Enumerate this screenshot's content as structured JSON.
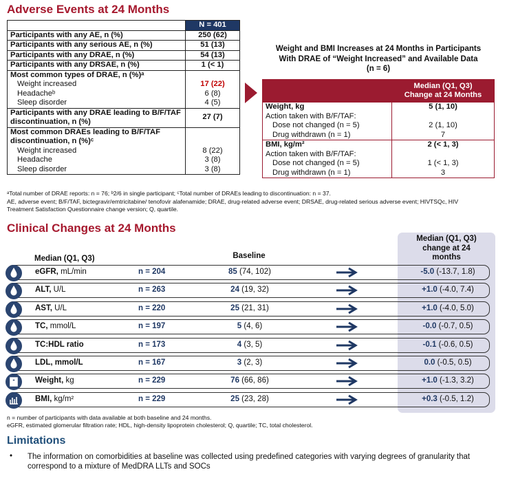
{
  "adverse_events": {
    "title": "Adverse Events at 24 Months",
    "header": "N = 401",
    "sections": [
      {
        "label": "Participants with any AE, n (%)",
        "value": "250 (62)"
      },
      {
        "label": "Participants with any serious AE, n (%)",
        "value": "51 (13)"
      },
      {
        "label": "Participants with any DRAE, n (%)",
        "value": "54 (13)"
      },
      {
        "label": "Participants with any DRSAE, n (%)",
        "value": "1 (< 1)"
      },
      {
        "label": "Most common types of DRAE, n (%)ᵃ",
        "items": [
          {
            "label": "Weight increased",
            "value": "17 (22)",
            "highlight": true
          },
          {
            "label": "Headacheᵇ",
            "value": "6 (8)"
          },
          {
            "label": "Sleep disorder",
            "value": "4 (5)"
          }
        ]
      },
      {
        "label": "Participants with any DRAE leading to B/F/TAF discontinuation, n (%)",
        "value": "27 (7)"
      },
      {
        "label": "Most common DRAEs leading to B/F/TAF discontinuation, n (%)ᶜ",
        "items": [
          {
            "label": "Weight increased",
            "value": "8 (22)"
          },
          {
            "label": "Headache",
            "value": "3 (8)"
          },
          {
            "label": "Sleep disorder",
            "value": "3 (8)"
          }
        ]
      }
    ],
    "footnotes": [
      "ᵃTotal number of DRAE reports: n = 76; ᵇ2/6 in single participant; ᶜTotal number of DRAEs leading to discontinuation: n = 37.",
      "AE, adverse event; B/F/TAF, bictegravir/emtricitabine/ tenofovir alafenamide; DRAE, drug-related adverse event; DRSAE, drug-related serious adverse event; HIVTSQc, HIV Treatment Satisfaction Questionnaire change version; Q, quartile."
    ]
  },
  "weight_bmi": {
    "title": "Weight and BMI Increases at 24 Months in Participants With DRAE of “Weight Increased” and Available Data (n = 6)",
    "header": "Median (Q1, Q3) Change at 24 Months",
    "sections": [
      {
        "label": "Weight, kg",
        "value": "5 (1, 10)",
        "action": "Action taken with B/F/TAF:",
        "items": [
          {
            "label": "Dose not changed (n = 5)",
            "value": "2 (1, 10)"
          },
          {
            "label": "Drug withdrawn (n = 1)",
            "value": "7"
          }
        ]
      },
      {
        "label": "BMI, kg/m²",
        "value": "2 (< 1, 3)",
        "action": "Action taken with B/F/TAF:",
        "items": [
          {
            "label": "Dose not changed (n = 5)",
            "value": "1 (< 1, 3)"
          },
          {
            "label": "Drug withdrawn (n = 1)",
            "value": "3"
          }
        ]
      }
    ]
  },
  "clinical": {
    "title": "Clinical Changes at 24 Months",
    "header_label": "Median (Q1, Q3)",
    "header_baseline": "Baseline",
    "header_change": "Median (Q1, Q3) change at 24 months",
    "rows": [
      {
        "name": "eGFR,",
        "unit": "mL/min",
        "n": "n = 204",
        "baseline_median": "85",
        "baseline_range": "(74, 102)",
        "change_median": "-5.0",
        "change_range": "(-13.7, 1.8)"
      },
      {
        "name": "ALT,",
        "unit": "U/L",
        "n": "n = 263",
        "baseline_median": "24",
        "baseline_range": "(19, 32)",
        "change_median": "+1.0",
        "change_range": "(-4.0, 7.4)"
      },
      {
        "name": "AST,",
        "unit": "U/L",
        "n": "n = 220",
        "baseline_median": "25",
        "baseline_range": "(21, 31)",
        "change_median": "+1.0",
        "change_range": "(-4.0, 5.0)"
      },
      {
        "name": "TC,",
        "unit": "mmol/L",
        "n": "n = 197",
        "baseline_median": "5",
        "baseline_range": "(4, 6)",
        "change_median": "-0.0",
        "change_range": "(-0.7, 0.5)"
      },
      {
        "name": "TC:HDL ratio",
        "n": "n = 173",
        "baseline_median": "4",
        "baseline_range": "(3, 5)",
        "change_median": "-0.1",
        "change_range": "(-0.6, 0.5)"
      },
      {
        "name": "LDL, mmol/L",
        "n": "n = 167",
        "baseline_median": "3",
        "baseline_range": "(2, 3)",
        "change_median": "0.0",
        "change_range": "(-0.5, 0.5)"
      },
      {
        "name": "Weight,",
        "unit": "kg",
        "n": "n = 229",
        "baseline_median": "76",
        "baseline_range": "(66, 86)",
        "change_median": "+1.0",
        "change_range": "(-1.3, 3.2)"
      },
      {
        "name": "BMI,",
        "unit": "kg/m²",
        "n": "n = 229",
        "baseline_median": "25",
        "baseline_range": "(23, 28)",
        "change_median": "+0.3",
        "change_range": "(-0.5, 1.2)"
      }
    ],
    "footnotes": [
      "n = number of participants with data available at both baseline and 24 months.",
      "eGFR, estimated glomerular filtration rate; HDL, high-density lipoprotein cholesterol; Q, quartile; TC, total cholesterol."
    ]
  },
  "limitations": {
    "title": "Limitations",
    "bullets": [
      "The information on comorbidities at baseline was collected using predefined categories with varying degrees of granularity that correspond to a mixture of MedDRA LLTs and SOCs"
    ]
  }
}
